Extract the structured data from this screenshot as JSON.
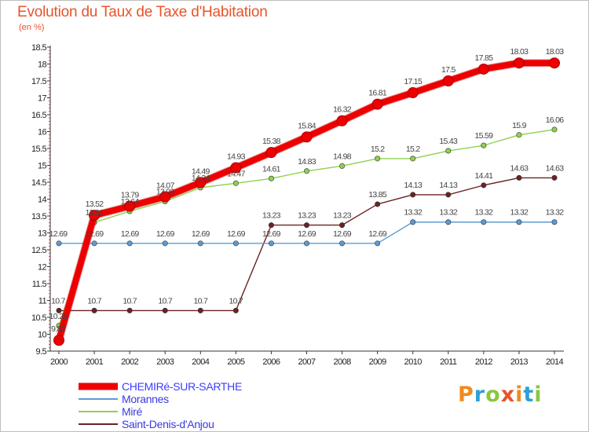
{
  "header": {
    "title": "Evolution du Taux de Taxe d'Habitation",
    "subtitle": "(en %)"
  },
  "logo": {
    "text": "Proxiti",
    "colors": [
      "#f08a1d",
      "#2e9fd8",
      "#8cc63f",
      "#e8532a",
      "#f08a1d",
      "#2e9fd8",
      "#8cc63f"
    ]
  },
  "chart_data": {
    "type": "line",
    "x": [
      "2000",
      "2001",
      "2002",
      "2003",
      "2004",
      "2005",
      "2006",
      "2007",
      "2008",
      "2009",
      "2010",
      "2011",
      "2012",
      "2013",
      "2014"
    ],
    "ylim": [
      9.5,
      18.5
    ],
    "yticks": [
      "9.5",
      "10",
      "10.5",
      "11",
      "11.5",
      "12",
      "12.5",
      "13",
      "13.5",
      "14",
      "14.5",
      "15",
      "15.5",
      "16",
      "16.5",
      "17",
      "17.5",
      "18",
      "18.5"
    ],
    "grid": false,
    "legend_position": "bottom-left",
    "series": [
      {
        "name": "Saint-Denis-d'Anjou",
        "color": "#6b2222",
        "values": [
          10.7,
          10.7,
          10.7,
          10.7,
          10.7,
          10.7,
          13.23,
          13.23,
          13.23,
          13.85,
          14.13,
          14.13,
          14.41,
          14.63,
          14.63
        ],
        "labels": [
          "10.7",
          "10.7",
          "10.7",
          "10.7",
          "10.7",
          "10.7",
          "13.23",
          "13.23",
          "13.23",
          "13.85",
          "14.13",
          "14.13",
          "14.41",
          "14.63",
          "14.63"
        ]
      },
      {
        "name": "Morannes",
        "color": "#5b9bd5",
        "values": [
          12.69,
          12.69,
          12.69,
          12.69,
          12.69,
          12.69,
          12.69,
          12.69,
          12.69,
          12.69,
          13.32,
          13.32,
          13.32,
          13.32,
          13.32
        ],
        "labels": [
          "12.69",
          "12.69",
          "12.69",
          "12.69",
          "12.69",
          "12.69",
          "12.69",
          "12.69",
          "12.69",
          "12.69",
          "13.32",
          "13.32",
          "13.32",
          "13.32",
          "13.32"
        ]
      },
      {
        "name": "Miré",
        "color": "#8fd14f",
        "values": [
          10.25,
          13.31,
          13.64,
          13.93,
          14.34,
          14.47,
          14.61,
          14.83,
          14.98,
          15.2,
          15.2,
          15.43,
          15.59,
          15.9,
          16.06
        ],
        "labels": [
          "10.25",
          "13.31",
          "13.64",
          "13.93",
          "14.34",
          "14.47",
          "14.61",
          "14.83",
          "14.98",
          "15.2",
          "15.2",
          "15.43",
          "15.59",
          "15.9",
          "16.06"
        ]
      },
      {
        "name": "CHEMIRé-SUR-SARTHE",
        "color": "#ee0000",
        "values": [
          9.82,
          13.52,
          13.79,
          14.07,
          14.49,
          14.93,
          15.38,
          15.84,
          16.32,
          16.81,
          17.15,
          17.5,
          17.85,
          18.03,
          18.03
        ],
        "labels": [
          "9.82",
          "13.52",
          "13.79",
          "14.07",
          "14.49",
          "14.93",
          "15.38",
          "15.84",
          "16.32",
          "16.81",
          "17.15",
          "17.5",
          "17.85",
          "18.03",
          "18.03"
        ]
      }
    ],
    "legend_order": [
      "CHEMIRé-SUR-SARTHE",
      "Morannes",
      "Miré",
      "Saint-Denis-d'Anjou"
    ]
  }
}
